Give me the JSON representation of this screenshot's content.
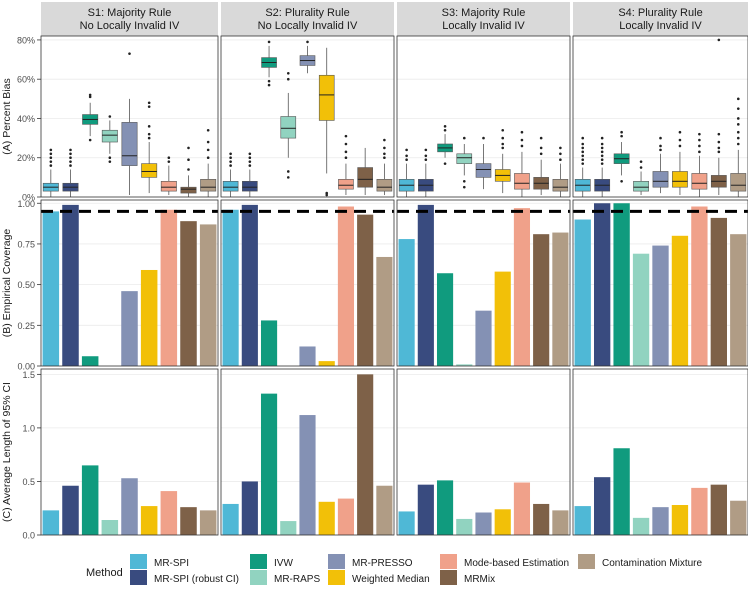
{
  "methods": [
    {
      "name": "MR-SPI",
      "color": "#4FB8D6"
    },
    {
      "name": "MR-SPI (robust CI)",
      "color": "#394B7F"
    },
    {
      "name": "IVW",
      "color": "#109B7E"
    },
    {
      "name": "MR-RAPS",
      "color": "#91D3C0"
    },
    {
      "name": "MR-PRESSO",
      "color": "#8491B4"
    },
    {
      "name": "Weighted Median",
      "color": "#F2C008"
    },
    {
      "name": "Mode-based Estimation",
      "color": "#F0A18A"
    },
    {
      "name": "MRMix",
      "color": "#7E6148"
    },
    {
      "name": "Contamination Mixture",
      "color": "#B09C85"
    }
  ],
  "legend_title": "Method",
  "chart_data": [
    {
      "type": "box",
      "panel": "A",
      "ylabel": "(A) Percent Bias",
      "ylim": [
        0,
        82
      ],
      "yticks": [
        0,
        20,
        40,
        60,
        80
      ],
      "yticklabels": [
        "0%",
        "20%",
        "40%",
        "60%",
        "80%"
      ],
      "series": [
        {
          "scenario": "S1: Majority Rule\nNo Locally Invalid IV",
          "boxes": [
            {
              "min": 0,
              "q1": 3,
              "median": 5,
              "q3": 7,
              "max": 14,
              "outliers": [
                16,
                18,
                20,
                22,
                24
              ]
            },
            {
              "min": 0,
              "q1": 3,
              "median": 5,
              "q3": 7,
              "max": 14,
              "outliers": [
                16,
                18,
                20,
                22,
                24
              ]
            },
            {
              "min": 31,
              "q1": 37,
              "median": 39.5,
              "q3": 42,
              "max": 48,
              "outliers": [
                29,
                51,
                52
              ]
            },
            {
              "min": 22,
              "q1": 28,
              "median": 31.5,
              "q3": 34,
              "max": 39,
              "outliers": [
                18,
                20,
                41
              ]
            },
            {
              "min": 1,
              "q1": 16,
              "median": 21,
              "q3": 38,
              "max": 50,
              "outliers": [
                73
              ]
            },
            {
              "min": 2,
              "q1": 10,
              "median": 13,
              "q3": 17,
              "max": 28,
              "outliers": [
                30,
                32,
                36,
                46,
                48
              ]
            },
            {
              "min": 1,
              "q1": 3,
              "median": 5,
              "q3": 8,
              "max": 16,
              "outliers": [
                18,
                20
              ]
            },
            {
              "min": 0,
              "q1": 2,
              "median": 4,
              "q3": 5,
              "max": 11,
              "outliers": [
                14,
                19,
                25
              ]
            },
            {
              "min": 0,
              "q1": 3,
              "median": 5,
              "q3": 9,
              "max": 17,
              "outliers": [
                20,
                24,
                28,
                34
              ]
            }
          ]
        },
        {
          "scenario": "S2: Plurality Rule\nNo Locally Invalid IV",
          "boxes": [
            {
              "min": 0,
              "q1": 3,
              "median": 5,
              "q3": 8,
              "max": 14,
              "outliers": [
                16,
                18,
                20,
                22
              ]
            },
            {
              "min": 0,
              "q1": 3,
              "median": 5,
              "q3": 8,
              "max": 14,
              "outliers": [
                16,
                18,
                20,
                22
              ]
            },
            {
              "min": 61,
              "q1": 66,
              "median": 68.5,
              "q3": 71,
              "max": 77,
              "outliers": [
                57,
                59,
                79
              ]
            },
            {
              "min": 20,
              "q1": 30,
              "median": 35,
              "q3": 41,
              "max": 53,
              "outliers": [
                10,
                13,
                60,
                63
              ]
            },
            {
              "min": 63,
              "q1": 67,
              "median": 69.5,
              "q3": 72,
              "max": 77,
              "outliers": [
                79
              ]
            },
            {
              "min": 12,
              "q1": 39,
              "median": 52,
              "q3": 62,
              "max": 76,
              "outliers": [
                1,
                2
              ]
            },
            {
              "min": 1,
              "q1": 4,
              "median": 6,
              "q3": 9,
              "max": 17,
              "outliers": [
                20,
                23,
                27,
                31
              ]
            },
            {
              "min": 1,
              "q1": 5,
              "median": 9,
              "q3": 15,
              "max": 25,
              "outliers": []
            },
            {
              "min": 1,
              "q1": 3,
              "median": 5,
              "q3": 9,
              "max": 17,
              "outliers": [
                20,
                22,
                25,
                29
              ]
            }
          ]
        },
        {
          "scenario": "S3: Majority Rule\nLocally Invalid IV",
          "boxes": [
            {
              "min": 0,
              "q1": 3,
              "median": 6,
              "q3": 9,
              "max": 17,
              "outliers": [
                19,
                21,
                24
              ]
            },
            {
              "min": 0,
              "q1": 3,
              "median": 6,
              "q3": 9,
              "max": 17,
              "outliers": [
                19,
                21,
                24
              ]
            },
            {
              "min": 20,
              "q1": 23,
              "median": 25,
              "q3": 27,
              "max": 32,
              "outliers": [
                17,
                34,
                36
              ]
            },
            {
              "min": 11,
              "q1": 17,
              "median": 20,
              "q3": 22,
              "max": 27,
              "outliers": [
                5,
                8,
                30
              ]
            },
            {
              "min": 4,
              "q1": 10,
              "median": 14,
              "q3": 17,
              "max": 27,
              "outliers": [
                30
              ]
            },
            {
              "min": 2,
              "q1": 8,
              "median": 11,
              "q3": 14,
              "max": 22,
              "outliers": [
                25,
                27,
                30,
                34
              ]
            },
            {
              "min": 0,
              "q1": 4,
              "median": 7,
              "q3": 12,
              "max": 23,
              "outliers": [
                26,
                29,
                33
              ]
            },
            {
              "min": 1,
              "q1": 4,
              "median": 7,
              "q3": 10,
              "max": 19,
              "outliers": [
                22,
                25,
                30
              ]
            },
            {
              "min": 0,
              "q1": 3,
              "median": 5,
              "q3": 9,
              "max": 17,
              "outliers": [
                19,
                22,
                25
              ]
            }
          ]
        },
        {
          "scenario": "S4: Plurality Rule\nLocally Invalid IV",
          "boxes": [
            {
              "min": 0,
              "q1": 3,
              "median": 6,
              "q3": 9,
              "max": 15,
              "outliers": [
                17,
                19,
                21,
                23,
                25,
                27,
                30
              ]
            },
            {
              "min": 0,
              "q1": 3,
              "median": 6,
              "q3": 9,
              "max": 15,
              "outliers": [
                17,
                19,
                21,
                23,
                25,
                27,
                30
              ]
            },
            {
              "min": 11,
              "q1": 17,
              "median": 19.5,
              "q3": 22,
              "max": 28,
              "outliers": [
                8,
                31,
                33
              ]
            },
            {
              "min": 1,
              "q1": 3,
              "median": 5,
              "q3": 8,
              "max": 13,
              "outliers": [
                15,
                18
              ]
            },
            {
              "min": 2,
              "q1": 5,
              "median": 8,
              "q3": 13,
              "max": 22,
              "outliers": [
                24,
                26,
                30
              ]
            },
            {
              "min": 1,
              "q1": 5,
              "median": 8,
              "q3": 13,
              "max": 23,
              "outliers": [
                26,
                29,
                33
              ]
            },
            {
              "min": 0,
              "q1": 4,
              "median": 7,
              "q3": 12,
              "max": 21,
              "outliers": [
                23,
                26,
                29,
                32
              ]
            },
            {
              "min": 1,
              "q1": 5,
              "median": 8,
              "q3": 11,
              "max": 20,
              "outliers": [
                23,
                25,
                28,
                32,
                80
              ]
            },
            {
              "min": 0,
              "q1": 3,
              "median": 6,
              "q3": 12,
              "max": 24,
              "outliers": [
                27,
                30,
                33,
                37,
                40,
                45,
                50
              ]
            }
          ]
        }
      ]
    },
    {
      "type": "bar",
      "panel": "B",
      "ylabel": "(B) Empirical Coverage",
      "ylim": [
        0,
        1.02
      ],
      "yticks": [
        0,
        0.25,
        0.5,
        0.75,
        1.0
      ],
      "yticklabels": [
        "0.00",
        "0.25",
        "0.50",
        "0.75",
        "1.00"
      ],
      "reference_line": 0.95,
      "series": [
        {
          "scenario": "S1",
          "values": [
            0.95,
            0.99,
            0.06,
            0.0,
            0.46,
            0.59,
            0.96,
            0.89,
            0.87
          ]
        },
        {
          "scenario": "S2",
          "values": [
            0.96,
            0.99,
            0.28,
            0.0,
            0.12,
            0.03,
            0.98,
            0.93,
            0.67
          ]
        },
        {
          "scenario": "S3",
          "values": [
            0.78,
            0.99,
            0.57,
            0.01,
            0.34,
            0.58,
            0.97,
            0.81,
            0.82
          ]
        },
        {
          "scenario": "S4",
          "values": [
            0.9,
            1.0,
            1.0,
            0.69,
            0.74,
            0.8,
            0.98,
            0.91,
            0.81
          ]
        }
      ]
    },
    {
      "type": "bar",
      "panel": "C",
      "ylabel": "(C) Average Length of 95% CI",
      "ylim": [
        0,
        1.55
      ],
      "yticks": [
        0,
        0.5,
        1.0,
        1.5
      ],
      "yticklabels": [
        "0.0",
        "0.5",
        "1.0",
        "1.5"
      ],
      "series": [
        {
          "scenario": "S1",
          "values": [
            0.23,
            0.46,
            0.65,
            0.14,
            0.53,
            0.27,
            0.41,
            0.26,
            0.23
          ]
        },
        {
          "scenario": "S2",
          "values": [
            0.29,
            0.5,
            1.32,
            0.13,
            1.12,
            0.31,
            0.34,
            1.5,
            0.46
          ]
        },
        {
          "scenario": "S3",
          "values": [
            0.22,
            0.47,
            0.51,
            0.15,
            0.21,
            0.24,
            0.49,
            0.29,
            0.23
          ]
        },
        {
          "scenario": "S4",
          "values": [
            0.27,
            0.54,
            0.81,
            0.16,
            0.26,
            0.28,
            0.44,
            0.47,
            0.32
          ]
        }
      ]
    }
  ]
}
